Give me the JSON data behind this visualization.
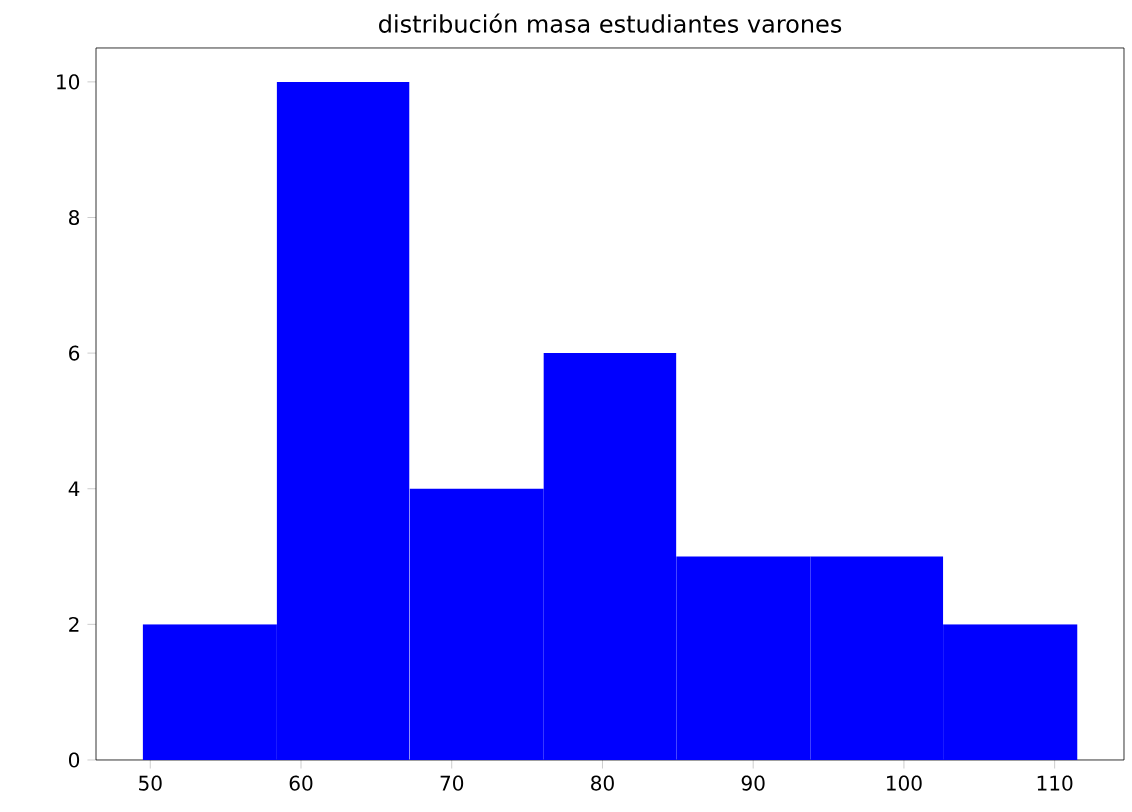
{
  "chart_data": {
    "type": "histogram",
    "title": "distribución masa estudiantes varones",
    "bins": [
      49.5,
      58.4,
      67.2,
      76.1,
      84.9,
      93.8,
      102.6,
      111.5
    ],
    "values": [
      2,
      10,
      4,
      6,
      3,
      3,
      2
    ],
    "color": "#0000ff",
    "xlim": [
      46.4,
      114.6
    ],
    "ylim": [
      0,
      10.5
    ],
    "xticks": [
      50,
      60,
      70,
      80,
      90,
      100,
      110
    ],
    "yticks": [
      0,
      2,
      4,
      6,
      8,
      10
    ]
  }
}
